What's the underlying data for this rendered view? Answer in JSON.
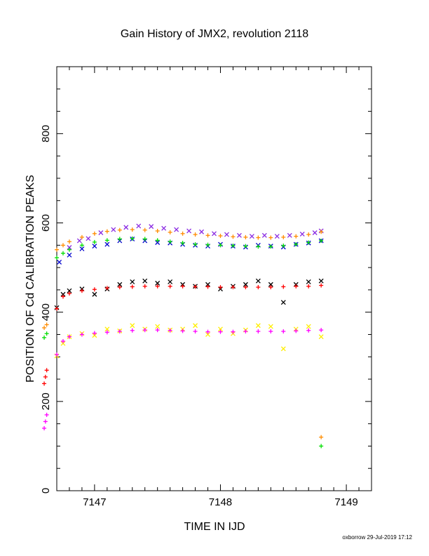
{
  "chart_data": {
    "type": "scatter",
    "title": "Gain History of JMX2, revolution 2118",
    "xlabel": "TIME IN IJD",
    "ylabel": "POSITION OF Cd CALIBRATION PEAKS",
    "xlim": [
      7146.7,
      7149.2
    ],
    "ylim": [
      0,
      950
    ],
    "x_ticks": [
      7147,
      7148,
      7149
    ],
    "x_tick_labels": [
      "7147",
      "7148",
      "7149"
    ],
    "y_ticks": [
      0,
      200,
      400,
      600,
      800
    ],
    "y_tick_labels": [
      "0",
      "200",
      "400",
      "600",
      "800"
    ],
    "grid": false,
    "series": [
      {
        "color": "#8a2be2",
        "marker": "x",
        "x": [
          7146.8,
          7146.88,
          7146.95,
          7147.05,
          7147.15,
          7147.25,
          7147.35,
          7147.45,
          7147.55,
          7147.65,
          7147.75,
          7147.85,
          7147.95,
          7148.05,
          7148.15,
          7148.25,
          7148.35,
          7148.45,
          7148.55,
          7148.65,
          7148.75,
          7148.8
        ],
        "y": [
          545,
          560,
          565,
          578,
          585,
          590,
          593,
          592,
          588,
          585,
          582,
          580,
          576,
          574,
          572,
          570,
          572,
          570,
          572,
          575,
          578,
          582
        ]
      },
      {
        "color": "#ff8c00",
        "marker": "+",
        "x": [
          7146.6,
          7146.62,
          7146.7,
          7146.75,
          7146.8,
          7146.9,
          7147.0,
          7147.1,
          7147.2,
          7147.3,
          7147.4,
          7147.5,
          7147.6,
          7147.7,
          7147.8,
          7147.9,
          7148.0,
          7148.1,
          7148.2,
          7148.3,
          7148.4,
          7148.5,
          7148.6,
          7148.7,
          7148.8,
          7148.8
        ],
        "y": [
          365,
          372,
          540,
          550,
          558,
          568,
          576,
          581,
          584,
          585,
          584,
          582,
          579,
          576,
          574,
          572,
          571,
          569,
          568,
          567,
          567,
          568,
          570,
          574,
          580,
          120
        ]
      },
      {
        "color": "#0000cd",
        "marker": "x",
        "x": [
          7146.72,
          7146.8,
          7146.9,
          7147.0,
          7147.1,
          7147.2,
          7147.3,
          7147.4,
          7147.5,
          7147.6,
          7147.7,
          7147.8,
          7147.9,
          7148.0,
          7148.1,
          7148.2,
          7148.3,
          7148.4,
          7148.5,
          7148.6,
          7148.7,
          7148.8
        ],
        "y": [
          512,
          528,
          542,
          548,
          552,
          560,
          564,
          560,
          556,
          555,
          552,
          550,
          548,
          552,
          548,
          546,
          550,
          548,
          546,
          552,
          555,
          560
        ]
      },
      {
        "color": "#00dd00",
        "marker": "+",
        "x": [
          7146.6,
          7146.62,
          7146.7,
          7146.75,
          7146.8,
          7146.9,
          7147.0,
          7147.1,
          7147.2,
          7147.3,
          7147.4,
          7147.5,
          7147.6,
          7147.7,
          7147.8,
          7147.9,
          7148.0,
          7148.1,
          7148.2,
          7148.3,
          7148.4,
          7148.5,
          7148.6,
          7148.7,
          7148.8,
          7148.8
        ],
        "y": [
          343,
          352,
          522,
          532,
          540,
          550,
          557,
          561,
          564,
          565,
          564,
          561,
          558,
          555,
          552,
          551,
          550,
          549,
          548,
          547,
          547,
          549,
          552,
          556,
          560,
          100
        ]
      },
      {
        "color": "#000000",
        "marker": "x",
        "x": [
          7146.7,
          7146.75,
          7146.8,
          7146.9,
          7147.0,
          7147.1,
          7147.2,
          7147.3,
          7147.4,
          7147.5,
          7147.6,
          7147.7,
          7147.8,
          7147.9,
          7148.0,
          7148.1,
          7148.2,
          7148.3,
          7148.4,
          7148.5,
          7148.6,
          7148.7,
          7148.8
        ],
        "y": [
          410,
          440,
          448,
          452,
          440,
          452,
          462,
          468,
          470,
          465,
          468,
          462,
          458,
          462,
          452,
          458,
          462,
          470,
          462,
          422,
          462,
          468,
          470
        ]
      },
      {
        "color": "#ff0000",
        "marker": "+",
        "x": [
          7146.6,
          7146.61,
          7146.62,
          7146.7,
          7146.75,
          7146.8,
          7146.9,
          7147.0,
          7147.1,
          7147.2,
          7147.3,
          7147.4,
          7147.5,
          7147.6,
          7147.7,
          7147.8,
          7147.9,
          7148.0,
          7148.1,
          7148.2,
          7148.3,
          7148.4,
          7148.5,
          7148.6,
          7148.7,
          7148.8
        ],
        "y": [
          240,
          255,
          270,
          408,
          435,
          442,
          448,
          451,
          454,
          456,
          457,
          458,
          458,
          458,
          458,
          457,
          457,
          456,
          456,
          456,
          456,
          456,
          457,
          458,
          458,
          460
        ]
      },
      {
        "color": "#ffee00",
        "marker": "x",
        "x": [
          7146.7,
          7146.75,
          7146.8,
          7146.9,
          7147.0,
          7147.1,
          7147.2,
          7147.3,
          7147.4,
          7147.5,
          7147.6,
          7147.7,
          7147.8,
          7147.9,
          7148.0,
          7148.1,
          7148.2,
          7148.3,
          7148.4,
          7148.5,
          7148.6,
          7148.7,
          7148.8
        ],
        "y": [
          302,
          330,
          345,
          352,
          348,
          362,
          358,
          370,
          362,
          368,
          360,
          362,
          370,
          350,
          362,
          352,
          360,
          370,
          368,
          318,
          362,
          368,
          345
        ]
      },
      {
        "color": "#ff00ff",
        "marker": "+",
        "x": [
          7146.6,
          7146.61,
          7146.62,
          7146.7,
          7146.75,
          7146.8,
          7146.9,
          7147.0,
          7147.1,
          7147.2,
          7147.3,
          7147.4,
          7147.5,
          7147.6,
          7147.7,
          7147.8,
          7147.9,
          7148.0,
          7148.1,
          7148.2,
          7148.3,
          7148.4,
          7148.5,
          7148.6,
          7148.7,
          7148.8
        ],
        "y": [
          140,
          155,
          170,
          305,
          335,
          345,
          350,
          353,
          355,
          357,
          359,
          360,
          360,
          359,
          358,
          357,
          356,
          356,
          356,
          357,
          357,
          357,
          357,
          358,
          359,
          360
        ]
      }
    ]
  },
  "footer": {
    "stamp": "oxborrow 29-Jul-2019 17:12"
  }
}
